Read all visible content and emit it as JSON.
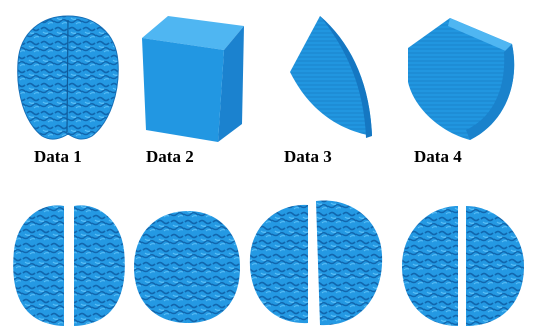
{
  "colors": {
    "mesh": "#2196e0",
    "mesh_light": "#45b2f2",
    "mesh_dark": "#1164a8"
  },
  "labels": [
    "Data 1",
    "Data 2",
    "Data 3",
    "Data 4"
  ],
  "top_row_shapes": [
    "brain-top-view",
    "cube",
    "wedge-curved",
    "cylinder-cut"
  ],
  "bottom_row_shapes": [
    "brain-split-1",
    "brain-blob-2",
    "brain-split-3",
    "brain-split-4"
  ]
}
